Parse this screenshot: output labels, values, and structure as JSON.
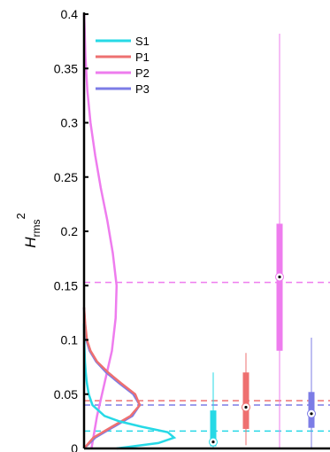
{
  "chart_data": {
    "type": "line",
    "ylabel": {
      "main": "H",
      "sub": "rms",
      "sup": "2"
    },
    "ylim": [
      0,
      0.4
    ],
    "yticks": [
      {
        "v": 0,
        "label": "0"
      },
      {
        "v": 0.05,
        "label": "0.05"
      },
      {
        "v": 0.1,
        "label": "0.1"
      },
      {
        "v": 0.15,
        "label": "0.15"
      },
      {
        "v": 0.2,
        "label": "0.2"
      },
      {
        "v": 0.25,
        "label": "0.25"
      },
      {
        "v": 0.3,
        "label": "0.3"
      },
      {
        "v": 0.35,
        "label": "0.35"
      },
      {
        "v": 0.4,
        "label": "0.4"
      }
    ],
    "legend_position": "top-left",
    "series": [
      {
        "name": "S1",
        "color": "#26D9E6",
        "mean": 0.016,
        "density": [
          [
            0.0,
            0.35
          ],
          [
            0.005,
            0.8
          ],
          [
            0.01,
            0.97
          ],
          [
            0.015,
            0.9
          ],
          [
            0.02,
            0.62
          ],
          [
            0.025,
            0.38
          ],
          [
            0.03,
            0.22
          ],
          [
            0.04,
            0.09
          ],
          [
            0.05,
            0.05
          ],
          [
            0.06,
            0.03
          ],
          [
            0.07,
            0.018
          ],
          [
            0.08,
            0.01
          ],
          [
            0.09,
            0.006
          ],
          [
            0.1,
            0.003
          ],
          [
            0.115,
            0.0
          ]
        ],
        "box": {
          "whisker_low": 0.0,
          "q1": 0.002,
          "median": 0.006,
          "q3": 0.035,
          "whisker_high": 0.07
        }
      },
      {
        "name": "P1",
        "color": "#EE7070",
        "mean": 0.044,
        "density": [
          [
            0.0,
            0.0
          ],
          [
            0.01,
            0.1
          ],
          [
            0.02,
            0.3
          ],
          [
            0.03,
            0.5
          ],
          [
            0.04,
            0.6
          ],
          [
            0.05,
            0.55
          ],
          [
            0.06,
            0.4
          ],
          [
            0.07,
            0.26
          ],
          [
            0.08,
            0.14
          ],
          [
            0.09,
            0.07
          ],
          [
            0.1,
            0.03
          ],
          [
            0.115,
            0.012
          ],
          [
            0.13,
            0.0
          ]
        ],
        "box": {
          "whisker_low": 0.003,
          "q1": 0.018,
          "median": 0.038,
          "q3": 0.07,
          "whisker_high": 0.088
        }
      },
      {
        "name": "P2",
        "color": "#EE7CEE",
        "mean": 0.153,
        "density": [
          [
            0.0,
            0.08
          ],
          [
            0.03,
            0.14
          ],
          [
            0.06,
            0.22
          ],
          [
            0.09,
            0.3
          ],
          [
            0.12,
            0.34
          ],
          [
            0.15,
            0.35
          ],
          [
            0.18,
            0.31
          ],
          [
            0.21,
            0.25
          ],
          [
            0.24,
            0.18
          ],
          [
            0.27,
            0.12
          ],
          [
            0.3,
            0.07
          ],
          [
            0.33,
            0.035
          ],
          [
            0.36,
            0.015
          ],
          [
            0.39,
            0.005
          ],
          [
            0.4,
            0.0
          ]
        ],
        "box": {
          "whisker_low": 0.0,
          "q1": 0.09,
          "median": 0.158,
          "q3": 0.207,
          "whisker_high": 0.382
        }
      },
      {
        "name": "P3",
        "color": "#7C7CE6",
        "mean": 0.04,
        "density": [
          [
            0.0,
            0.0
          ],
          [
            0.01,
            0.12
          ],
          [
            0.02,
            0.32
          ],
          [
            0.03,
            0.52
          ],
          [
            0.04,
            0.6
          ],
          [
            0.05,
            0.53
          ],
          [
            0.06,
            0.38
          ],
          [
            0.07,
            0.24
          ],
          [
            0.08,
            0.13
          ],
          [
            0.09,
            0.06
          ],
          [
            0.1,
            0.025
          ],
          [
            0.115,
            0.008
          ],
          [
            0.13,
            0.0
          ]
        ],
        "box": {
          "whisker_low": 0.0,
          "q1": 0.019,
          "median": 0.032,
          "q3": 0.052,
          "whisker_high": 0.102
        }
      }
    ]
  }
}
